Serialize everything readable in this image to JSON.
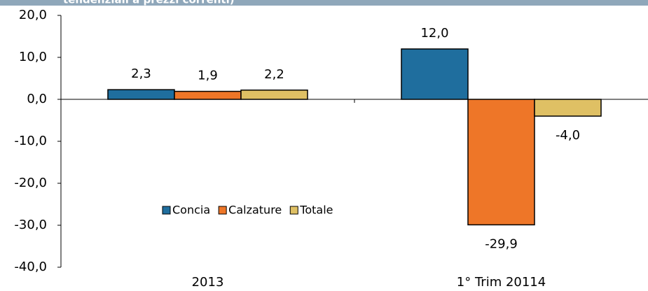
{
  "chart_data": {
    "type": "bar",
    "title": "tendenziali a prezzi correnti)",
    "categories": [
      "2013",
      "1° Trim 20114"
    ],
    "series": [
      {
        "name": "Concia",
        "color": "#1f6e9e",
        "values": [
          2.3,
          12.0
        ],
        "value_labels": [
          "2,3",
          "12,0"
        ]
      },
      {
        "name": "Calzature",
        "color": "#ee7628",
        "values": [
          1.9,
          -29.9
        ],
        "value_labels": [
          "1,9",
          "-29,9"
        ]
      },
      {
        "name": "Totale",
        "color": "#dfc064",
        "values": [
          2.2,
          -4.0
        ],
        "value_labels": [
          "2,2",
          "-4,0"
        ]
      }
    ],
    "ylim": [
      -40,
      20
    ],
    "yticks": [
      {
        "value": -40,
        "label": "-40,0"
      },
      {
        "value": -30,
        "label": "-30,0"
      },
      {
        "value": -20,
        "label": "-20,0"
      },
      {
        "value": -10,
        "label": "-10,0"
      },
      {
        "value": 0,
        "label": "0,0"
      },
      {
        "value": 10,
        "label": "10,0"
      },
      {
        "value": 20,
        "label": "20,0"
      }
    ],
    "grid": false
  }
}
